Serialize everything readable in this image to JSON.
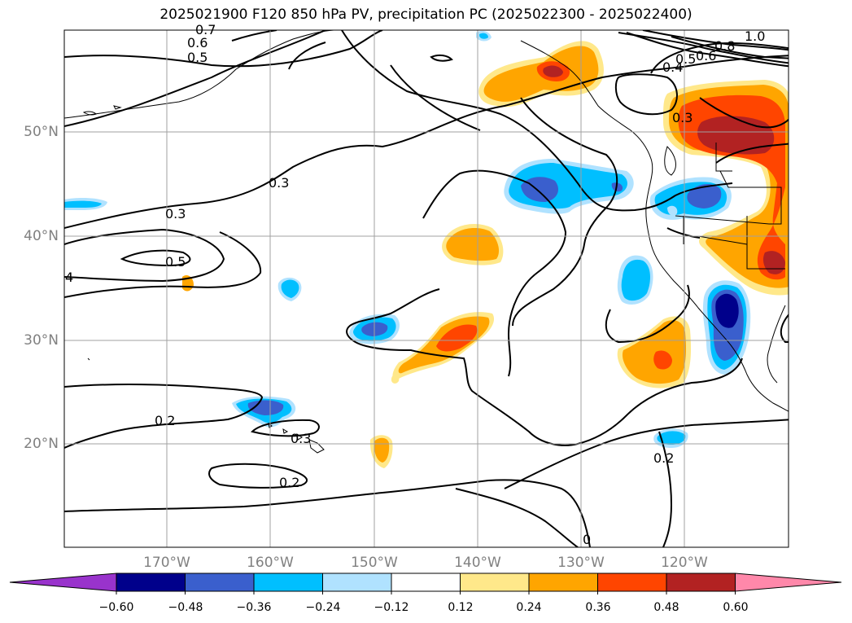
{
  "title": "2025021900 F120 850 hPa PV, precipitation PC (2025022300 - 2025022400)",
  "lat_labels": [
    "50°N",
    "40°N",
    "30°N",
    "20°N"
  ],
  "lon_labels": [
    "170°W",
    "160°W",
    "150°W",
    "140°W",
    "130°W",
    "120°W"
  ],
  "contour_labels": [
    "1.0",
    "0.8",
    "0.6",
    "0.5",
    "0.4",
    "0.3",
    "0.3",
    "0.3",
    "0.2",
    "0.2",
    "0.2",
    "0",
    "4",
    "0.5",
    "0.3",
    "0.6",
    "0.5",
    "0.7"
  ],
  "colorbar": {
    "tick_labels": [
      "−0.60",
      "−0.48",
      "−0.36",
      "−0.24",
      "−0.12",
      "0.12",
      "0.24",
      "0.36",
      "0.48",
      "0.60"
    ],
    "colors": [
      "#9933cc",
      "#00008b",
      "#3a5fcd",
      "#00bfff",
      "#b0e2ff",
      "#ffffff",
      "#ffe88a",
      "#ffa500",
      "#ff4500",
      "#b22222",
      "#ff88aa"
    ]
  }
}
